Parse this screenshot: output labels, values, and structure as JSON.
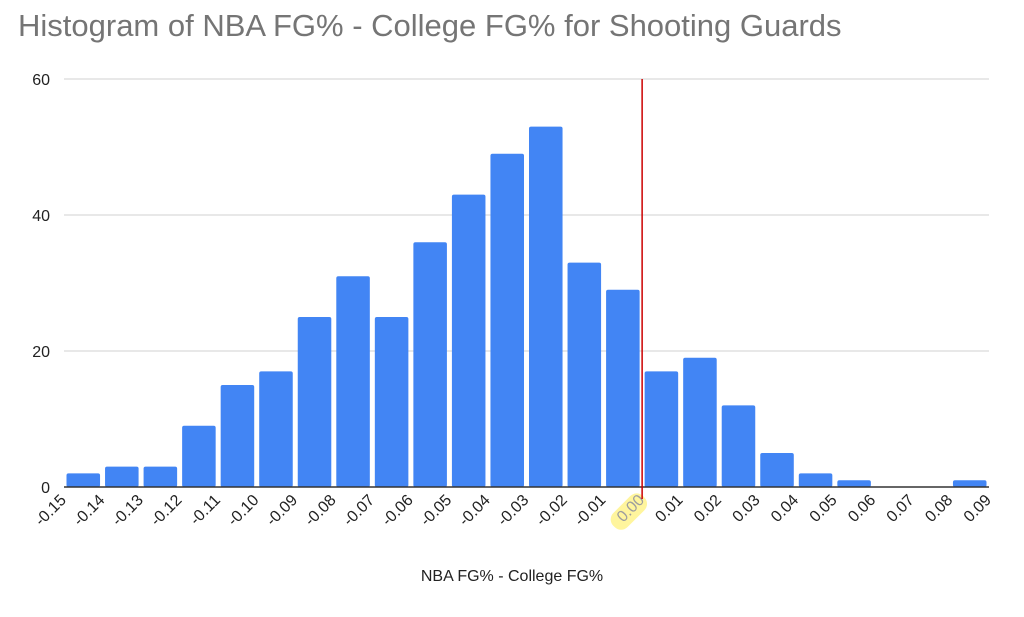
{
  "chart_data": {
    "type": "bar",
    "title": "Histogram of NBA FG% - College FG% for Shooting Guards",
    "xlabel": "NBA FG% - College FG%",
    "ylabel": "",
    "ylim": [
      0,
      60
    ],
    "yticks": [
      "0",
      "20",
      "40",
      "60"
    ],
    "xticks": [
      "-0.15",
      "-0.14",
      "-0.13",
      "-0.12",
      "-0.11",
      "-0.10",
      "-0.09",
      "-0.08",
      "-0.07",
      "-0.06",
      "-0.05",
      "-0.04",
      "-0.03",
      "-0.02",
      "-0.01",
      "0.00",
      "0.01",
      "0.02",
      "0.03",
      "0.04",
      "0.05",
      "0.06",
      "0.07",
      "0.08",
      "0.09"
    ],
    "bins": [
      {
        "start": -0.15,
        "end": -0.14,
        "count": 2
      },
      {
        "start": -0.14,
        "end": -0.13,
        "count": 3
      },
      {
        "start": -0.13,
        "end": -0.12,
        "count": 3
      },
      {
        "start": -0.12,
        "end": -0.11,
        "count": 9
      },
      {
        "start": -0.11,
        "end": -0.1,
        "count": 15
      },
      {
        "start": -0.1,
        "end": -0.09,
        "count": 17
      },
      {
        "start": -0.09,
        "end": -0.08,
        "count": 25
      },
      {
        "start": -0.08,
        "end": -0.07,
        "count": 31
      },
      {
        "start": -0.07,
        "end": -0.06,
        "count": 25
      },
      {
        "start": -0.06,
        "end": -0.05,
        "count": 36
      },
      {
        "start": -0.05,
        "end": -0.04,
        "count": 43
      },
      {
        "start": -0.04,
        "end": -0.03,
        "count": 49
      },
      {
        "start": -0.03,
        "end": -0.02,
        "count": 53
      },
      {
        "start": -0.02,
        "end": -0.01,
        "count": 33
      },
      {
        "start": -0.01,
        "end": 0.0,
        "count": 29
      },
      {
        "start": 0.0,
        "end": 0.01,
        "count": 17
      },
      {
        "start": 0.01,
        "end": 0.02,
        "count": 19
      },
      {
        "start": 0.02,
        "end": 0.03,
        "count": 12
      },
      {
        "start": 0.03,
        "end": 0.04,
        "count": 5
      },
      {
        "start": 0.04,
        "end": 0.05,
        "count": 2
      },
      {
        "start": 0.05,
        "end": 0.06,
        "count": 1
      },
      {
        "start": 0.06,
        "end": 0.07,
        "count": 0
      },
      {
        "start": 0.07,
        "end": 0.08,
        "count": 0
      },
      {
        "start": 0.08,
        "end": 0.09,
        "count": 1
      }
    ],
    "reference_line": {
      "x": 0.0,
      "color": "#cc0000"
    },
    "highlighted_tick": "0.00",
    "highlight_color": "#fff59d",
    "bar_color": "#4285f4",
    "grid": true,
    "legend": "none"
  }
}
